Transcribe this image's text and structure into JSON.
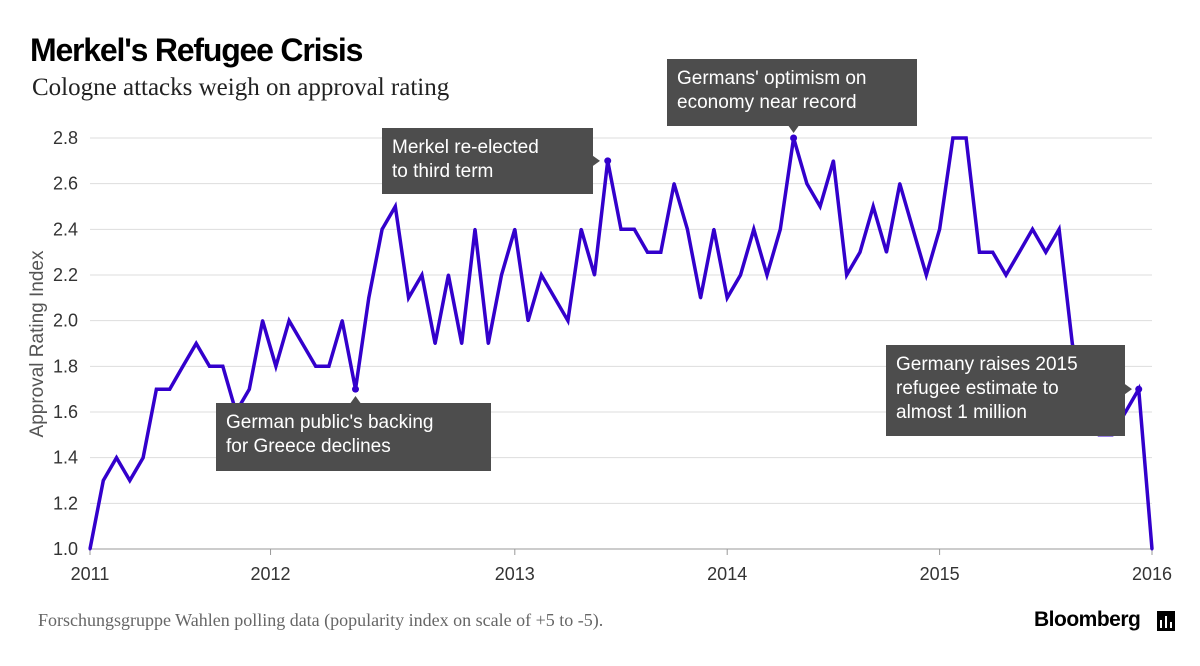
{
  "header": {
    "title": "Merkel's Refugee Crisis",
    "subtitle": "Cologne attacks weigh on approval rating"
  },
  "footer": {
    "source": "Forschungsgruppe Wahlen polling data (popularity index on scale of +5 to -5).",
    "brand": "Bloomberg"
  },
  "colors": {
    "line": "#3300cc",
    "grid": "#dddddd",
    "annotation_bg": "#4d4d4d"
  },
  "chart_data": {
    "type": "line",
    "ylabel": "Approval Rating Index",
    "xlabel": "",
    "ylim": [
      1.0,
      2.8
    ],
    "yticks": [
      "1.0",
      "1.2",
      "1.4",
      "1.6",
      "1.8",
      "2.0",
      "2.2",
      "2.4",
      "2.6",
      "2.8"
    ],
    "xticks": [
      {
        "label": "2011",
        "year": 2011.0
      },
      {
        "label": "2012",
        "year": 2011.85
      },
      {
        "label": "2013",
        "year": 2013.0
      },
      {
        "label": "2014",
        "year": 2014.0
      },
      {
        "label": "2015",
        "year": 2015.0
      },
      {
        "label": "2016",
        "year": 2016.0
      }
    ],
    "grid": true,
    "series": [
      {
        "values": [
          1.0,
          1.3,
          1.4,
          1.3,
          1.4,
          1.7,
          1.7,
          1.8,
          1.9,
          1.8,
          1.8,
          1.6,
          1.7,
          2.0,
          1.8,
          2.0,
          1.9,
          1.8,
          1.8,
          2.0,
          1.7,
          2.1,
          2.4,
          2.5,
          2.1,
          2.2,
          1.9,
          2.2,
          1.9,
          2.4,
          1.9,
          2.2,
          2.4,
          2.0,
          2.2,
          2.1,
          2.0,
          2.4,
          2.2,
          2.7,
          2.4,
          2.4,
          2.3,
          2.3,
          2.6,
          2.4,
          2.1,
          2.4,
          2.1,
          2.2,
          2.4,
          2.2,
          2.4,
          2.8,
          2.6,
          2.5,
          2.7,
          2.2,
          2.3,
          2.5,
          2.3,
          2.6,
          2.4,
          2.2,
          2.4,
          2.8,
          2.8,
          2.3,
          2.3,
          2.2,
          2.3,
          2.4,
          2.3,
          2.4,
          1.9,
          1.6,
          1.5,
          1.5,
          1.6,
          1.7,
          1.0
        ]
      }
    ],
    "annotations": [
      {
        "point_index": 20,
        "lines": [
          "German public's backing",
          "for Greece declines"
        ]
      },
      {
        "point_index": 39,
        "lines": [
          "Merkel re-elected",
          "to third term"
        ]
      },
      {
        "point_index": 53,
        "lines": [
          "Germans' optimism on",
          "economy near record"
        ]
      },
      {
        "point_index": 79,
        "lines": [
          "Germany raises 2015",
          "refugee estimate to",
          "almost 1 million"
        ]
      }
    ]
  }
}
